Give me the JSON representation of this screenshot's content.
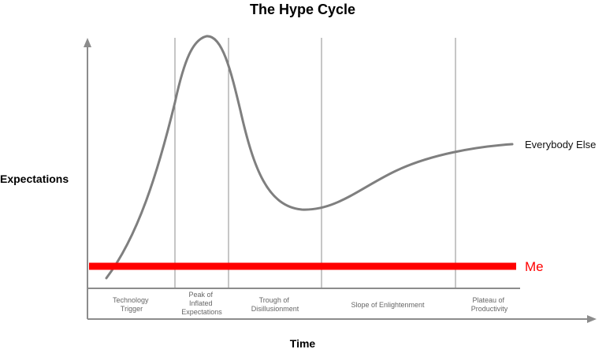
{
  "title": "The Hype Cycle",
  "y_axis_label": "Expectations",
  "x_axis_label": "Time",
  "phases": [
    {
      "lines": [
        "Technology",
        "Trigger"
      ]
    },
    {
      "lines": [
        "Peak of",
        "Inflated",
        "Expectations"
      ]
    },
    {
      "lines": [
        "Trough of",
        "Disillusionment"
      ]
    },
    {
      "lines": [
        "Slope of Enlightenment"
      ]
    },
    {
      "lines": [
        "Plateau of",
        "Productivity"
      ]
    }
  ],
  "series": [
    {
      "name": "Everybody Else",
      "color": "#7f7f7f"
    },
    {
      "name": "Me",
      "color": "#ff0000"
    }
  ],
  "colors": {
    "axis": "#8c8c8c",
    "divider": "#8c8c8c",
    "phase_text": "#666666"
  }
}
